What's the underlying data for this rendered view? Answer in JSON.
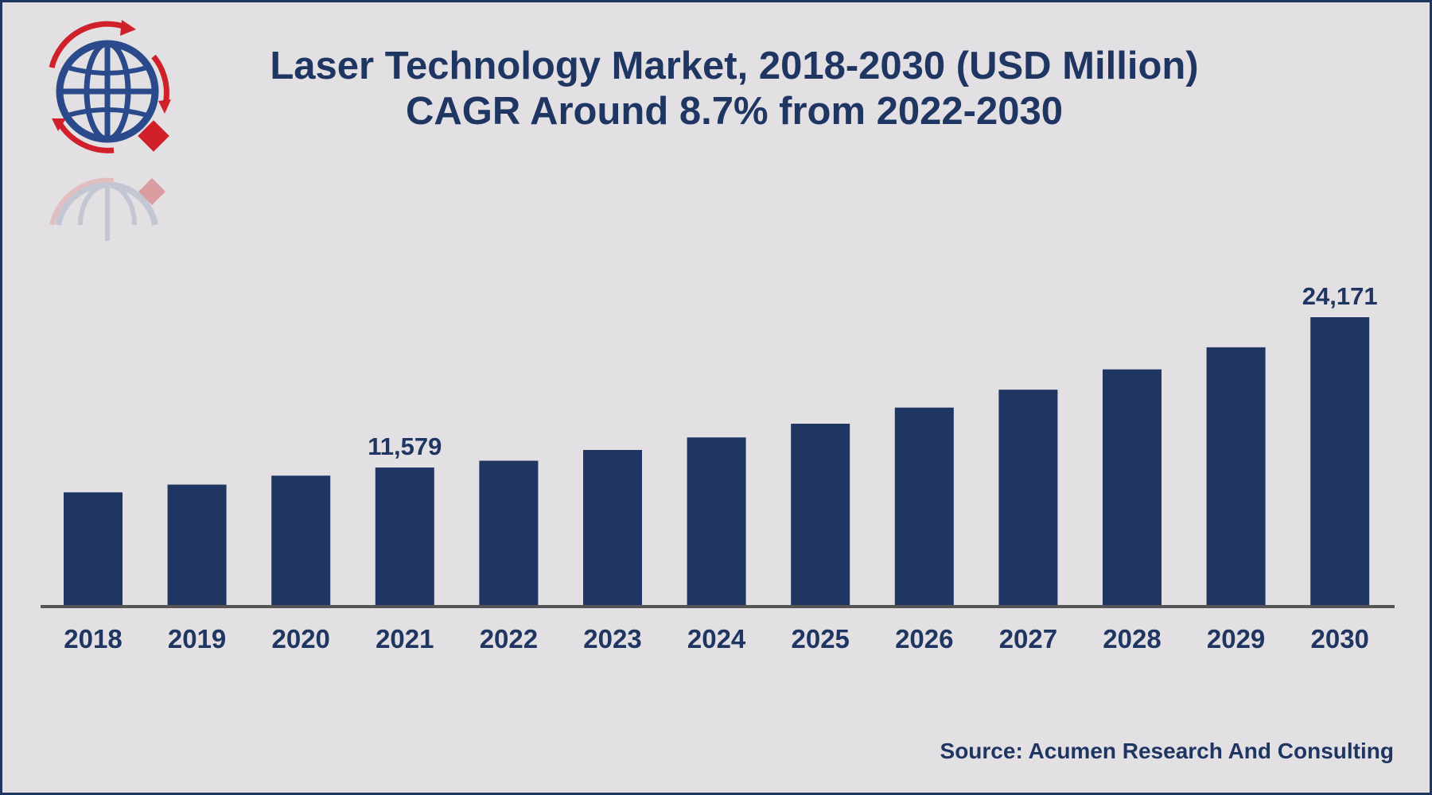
{
  "logo": {
    "name": "globe-logo",
    "colors": {
      "globe": "#2a4a8c",
      "arrows": "#d0202a"
    }
  },
  "chart_data": {
    "type": "bar",
    "title": "Laser Technology Market, 2018-2030 (USD Million)",
    "subtitle": "CAGR Around 8.7% from 2022-2030",
    "categories": [
      "2018",
      "2019",
      "2020",
      "2021",
      "2022",
      "2023",
      "2024",
      "2025",
      "2026",
      "2027",
      "2028",
      "2029",
      "2030"
    ],
    "values": [
      9500,
      10150,
      10900,
      11579,
      12150,
      13050,
      14100,
      15250,
      16600,
      18100,
      19800,
      21650,
      24171
    ],
    "data_labels": [
      {
        "category": "2021",
        "text": "11,579"
      },
      {
        "category": "2030",
        "text": "24,171"
      }
    ],
    "ylim": [
      0,
      24171
    ],
    "bar_color": "#1f3562",
    "axis_color": "#555555",
    "grid": false,
    "legend": "none",
    "xlabel": "",
    "ylabel": ""
  },
  "footer": {
    "source": "Source: Acumen Research And Consulting"
  }
}
